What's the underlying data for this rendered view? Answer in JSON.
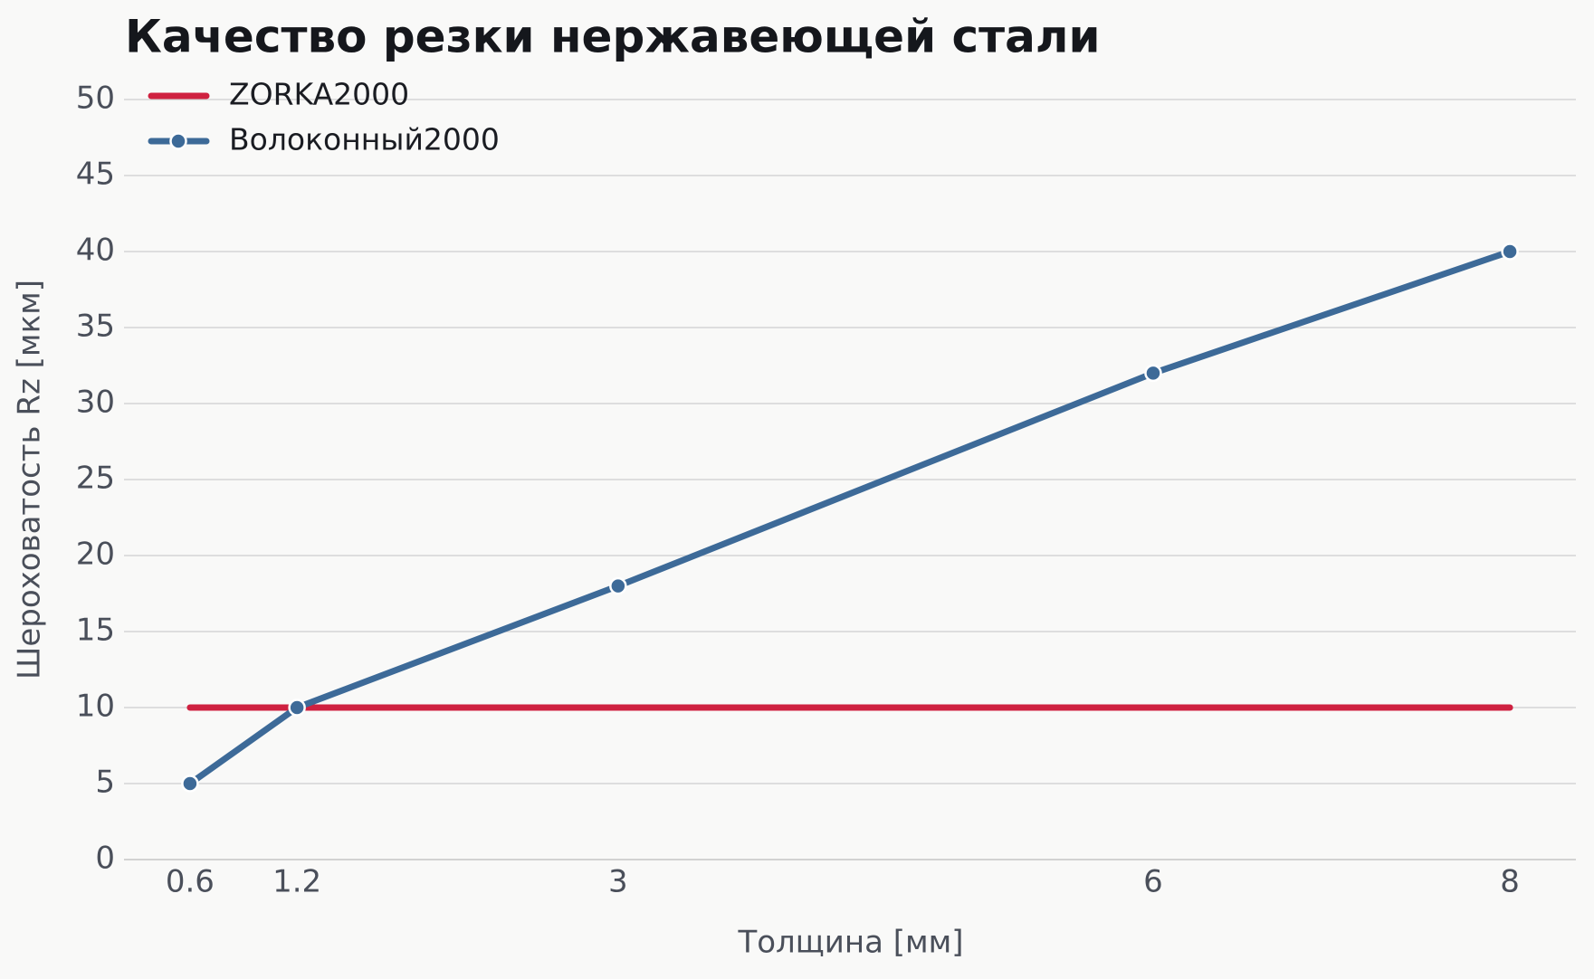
{
  "chart_data": {
    "type": "line",
    "title": "Качество резки нержавеющей стали",
    "x_label": "Толщина [мм]",
    "y_label": "Шероховатость Rz [мкм]",
    "x": [
      0.6,
      1.2,
      3,
      6,
      8
    ],
    "series": [
      {
        "name": "ZORKA2000",
        "color": "#cf2140",
        "values": [
          10,
          10,
          10,
          10,
          10
        ],
        "marker": false
      },
      {
        "name": "Волоконный2000",
        "color": "#3d6a98",
        "values": [
          5,
          10,
          18,
          32,
          40
        ],
        "marker": true
      }
    ],
    "xlim": [
      0.23,
      8.37
    ],
    "xticks": [
      0.6,
      1.2,
      3,
      6,
      8
    ],
    "ylim": [
      0,
      50
    ],
    "yticks": [
      0,
      5,
      10,
      15,
      20,
      25,
      30,
      35,
      40,
      45,
      50
    ],
    "grid": true,
    "legend": "upper left"
  }
}
